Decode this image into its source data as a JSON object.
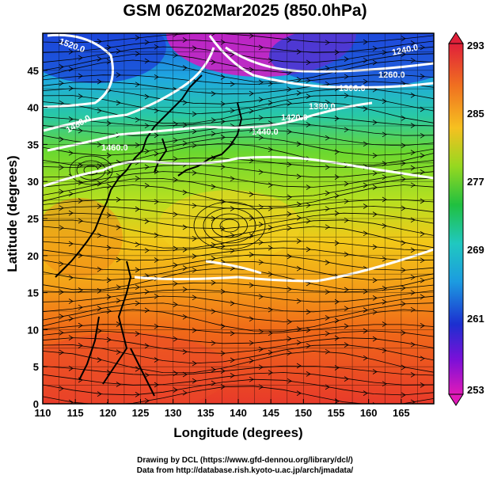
{
  "title": "GSM 06Z02Mar2025 (850.0hPa)",
  "xaxis": {
    "label": "Longitude (degrees)",
    "ticks": [
      "110",
      "115",
      "120",
      "125",
      "130",
      "135",
      "140",
      "145",
      "150",
      "155",
      "160",
      "165"
    ]
  },
  "yaxis": {
    "label": "Latitude  (degrees)",
    "ticks": [
      "0",
      "5",
      "10",
      "15",
      "20",
      "25",
      "30",
      "35",
      "40",
      "45"
    ]
  },
  "colorbar": {
    "labels": [
      "293",
      "285",
      "277",
      "269",
      "261",
      "253"
    ],
    "colors": [
      "#e0203a",
      "#f07020",
      "#f6c020",
      "#96d820",
      "#20c040",
      "#20c8c0",
      "#1c9be0",
      "#1c2fd0",
      "#7a10d8",
      "#e01ab8"
    ]
  },
  "contours": {
    "labels": [
      "1520.0",
      "1240.0",
      "1260.0",
      "1300.0",
      "1380.0",
      "1420.0",
      "1480.0",
      "1440.0",
      "1460.0"
    ]
  },
  "credits": {
    "line1": "Drawing by DCL (https://www.gfd-dennou.org/library/dcl/)",
    "line2": "Data from http://database.rish.kyoto-u.ac.jp/arch/jmadata/"
  }
}
